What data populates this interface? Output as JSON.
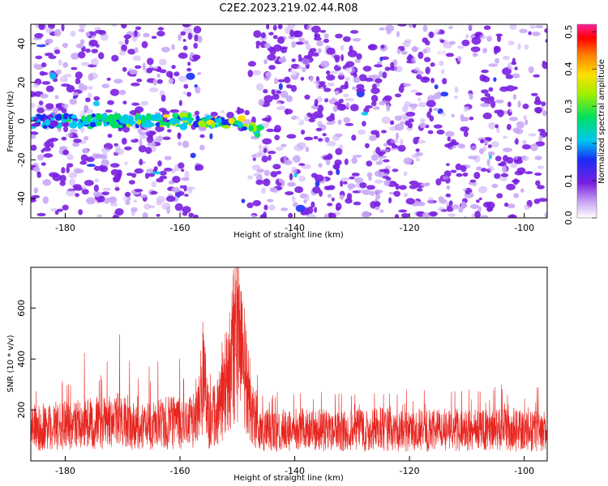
{
  "title": "C2E2.2023.219.02.44.R08",
  "chart_data": [
    {
      "type": "heatmap",
      "title": "C2E2.2023.219.02.44.R08",
      "xlabel": "Height of straight line (km)",
      "ylabel": "Frequency (Hz)",
      "xlim": [
        -186,
        -96
      ],
      "ylim": [
        -50,
        50
      ],
      "x_ticks": [
        "-180",
        "-160",
        "-140",
        "-120",
        "-100"
      ],
      "y_ticks": [
        "-40",
        "-20",
        "0",
        "20",
        "40"
      ],
      "colorbar": {
        "label": "Normalized spectral amplitude",
        "range": [
          0.0,
          0.52
        ],
        "ticks": [
          "0.0",
          "0.1",
          "0.2",
          "0.3",
          "0.4",
          "0.5"
        ],
        "colormap": "white-purple-blue-cyan-green-yellow-orange-red-magenta"
      },
      "features": [
        {
          "description_value": "strong signal band near 0 Hz",
          "x_range": [
            -186,
            -146
          ],
          "frequency_hz": 0,
          "peak_amplitude": 0.5,
          "peak_height_km": -151
        },
        {
          "description_value": "low-amplitude gap",
          "x_range": [
            -156,
            -148
          ]
        }
      ],
      "colors": {
        "background_noise": "#7a1fe0",
        "peak": "#ff0000"
      }
    },
    {
      "type": "line",
      "xlabel": "Height of straight line (km)",
      "ylabel": "SNR (10 * v/v)",
      "xlim": [
        -186,
        -96
      ],
      "ylim": [
        0,
        760
      ],
      "x_ticks": [
        "-180",
        "-160",
        "-140",
        "-120",
        "-100"
      ],
      "y_ticks": [
        "200",
        "400",
        "600"
      ],
      "series": [
        {
          "color": "#e8251f",
          "x": [
            -186,
            -183,
            -180,
            -177,
            -174,
            -171,
            -168,
            -165,
            -162,
            -159,
            -157,
            -156,
            -155,
            -153,
            -152,
            -151,
            -150,
            -149,
            -148,
            -147,
            -146,
            -145,
            -143,
            -140,
            -137,
            -134,
            -131,
            -128,
            -125,
            -122,
            -119,
            -116,
            -113,
            -110,
            -107,
            -104,
            -101,
            -98,
            -96
          ],
          "values": [
            130,
            135,
            140,
            145,
            150,
            160,
            130,
            135,
            150,
            140,
            170,
            330,
            160,
            200,
            310,
            420,
            500,
            380,
            260,
            180,
            130,
            120,
            115,
            120,
            125,
            120,
            118,
            122,
            125,
            120,
            118,
            120,
            122,
            120,
            118,
            120,
            125,
            120,
            118
          ],
          "peak_values": [
            290,
            300,
            360,
            430,
            380,
            520,
            380,
            370,
            440,
            380,
            360,
            460,
            380,
            420,
            560,
            660,
            760,
            600,
            420,
            380,
            300,
            280,
            270,
            260,
            280,
            270,
            260,
            260,
            270,
            260,
            300,
            280,
            270,
            280,
            270,
            300,
            280,
            290,
            280
          ]
        }
      ]
    }
  ]
}
